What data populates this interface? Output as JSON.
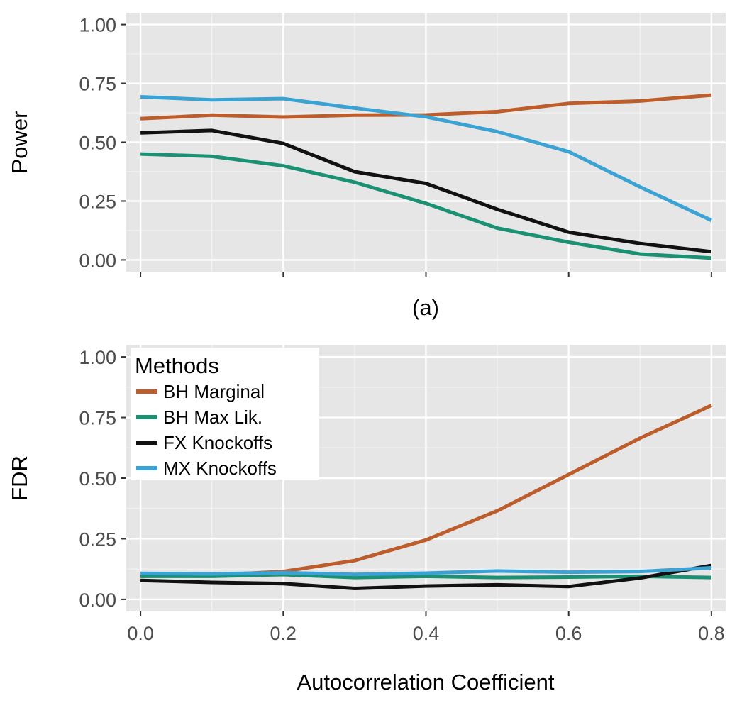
{
  "chart_data": [
    {
      "type": "line",
      "panel_label": "(a)",
      "xlabel": "",
      "ylabel": "Power",
      "xlim": [
        -0.02,
        0.82
      ],
      "ylim": [
        -0.05,
        1.05
      ],
      "x_ticks": [
        "0.0",
        "0.2",
        "0.4",
        "0.6",
        "0.8"
      ],
      "y_ticks": [
        "0.00",
        "0.25",
        "0.50",
        "0.75",
        "1.00"
      ],
      "x": [
        0.0,
        0.1,
        0.2,
        0.3,
        0.4,
        0.5,
        0.6,
        0.7,
        0.8
      ],
      "grid": true,
      "series": [
        {
          "name": "BH Marginal",
          "color": "#bd5d2b",
          "values": [
            0.6,
            0.615,
            0.607,
            0.615,
            0.616,
            0.63,
            0.665,
            0.675,
            0.7
          ]
        },
        {
          "name": "BH Max Lik.",
          "color": "#1b9173",
          "values": [
            0.45,
            0.44,
            0.4,
            0.33,
            0.24,
            0.135,
            0.075,
            0.025,
            0.008
          ]
        },
        {
          "name": "FX Knockoffs",
          "color": "#111111",
          "values": [
            0.54,
            0.55,
            0.495,
            0.375,
            0.325,
            0.215,
            0.118,
            0.07,
            0.035
          ]
        },
        {
          "name": "MX Knockoffs",
          "color": "#3ba3d4",
          "values": [
            0.693,
            0.68,
            0.685,
            0.645,
            0.608,
            0.545,
            0.46,
            0.31,
            0.168
          ]
        }
      ]
    },
    {
      "type": "line",
      "xlabel": "Autocorrelation Coefficient",
      "ylabel": "FDR",
      "xlim": [
        -0.02,
        0.82
      ],
      "ylim": [
        -0.05,
        1.05
      ],
      "x_ticks": [
        "0.0",
        "0.2",
        "0.4",
        "0.6",
        "0.8"
      ],
      "y_ticks": [
        "0.00",
        "0.25",
        "0.50",
        "0.75",
        "1.00"
      ],
      "x": [
        0.0,
        0.1,
        0.2,
        0.3,
        0.4,
        0.5,
        0.6,
        0.7,
        0.8
      ],
      "grid": true,
      "legend": {
        "title": "Methods",
        "position": "top-left"
      },
      "series": [
        {
          "name": "BH Marginal",
          "color": "#bd5d2b",
          "values": [
            0.095,
            0.1,
            0.115,
            0.16,
            0.245,
            0.365,
            0.515,
            0.665,
            0.8
          ]
        },
        {
          "name": "BH Max Lik.",
          "color": "#1b9173",
          "values": [
            0.095,
            0.095,
            0.102,
            0.09,
            0.095,
            0.09,
            0.092,
            0.095,
            0.09
          ]
        },
        {
          "name": "FX Knockoffs",
          "color": "#111111",
          "values": [
            0.078,
            0.07,
            0.065,
            0.045,
            0.055,
            0.06,
            0.053,
            0.088,
            0.14
          ]
        },
        {
          "name": "MX Knockoffs",
          "color": "#3ba3d4",
          "values": [
            0.107,
            0.105,
            0.11,
            0.103,
            0.108,
            0.117,
            0.112,
            0.115,
            0.13
          ]
        }
      ]
    }
  ]
}
